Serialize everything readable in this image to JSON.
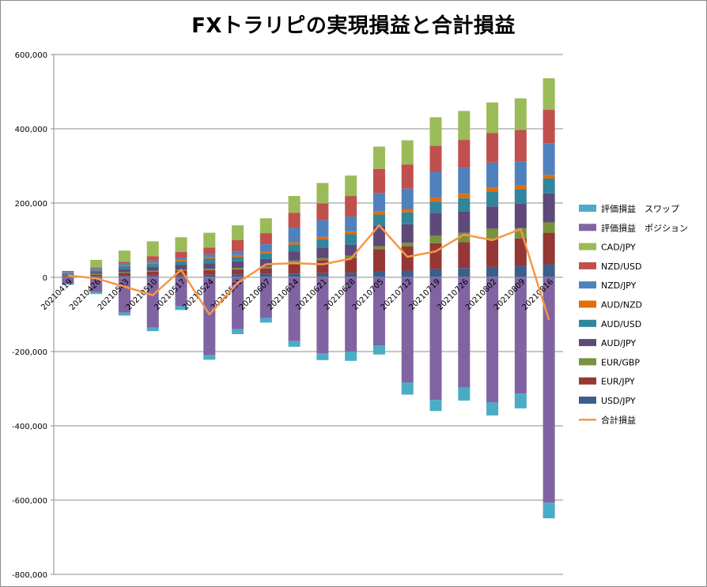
{
  "chart_data": {
    "type": "bar",
    "title": "FXトラリピの実現損益と合計損益",
    "categories": [
      "20210419",
      "20210426",
      "20210503",
      "20210510",
      "20210517",
      "20210524",
      "20210531",
      "20210607",
      "20210614",
      "20210621",
      "20210628",
      "20210705",
      "20210712",
      "20210719",
      "20210726",
      "20210802",
      "20210809",
      "20210816"
    ],
    "ylim": [
      -800000,
      600000
    ],
    "ytick_step": 200000,
    "ytick_labels": [
      "600,000",
      "400,000",
      "200,000",
      "0",
      "-200,000",
      "-400,000",
      "-600,000",
      "-800,000"
    ],
    "grid": true,
    "legend_position": "right",
    "series": [
      {
        "name": "USD/JPY",
        "color": "#3b5e8c",
        "values": [
          2000,
          3000,
          4000,
          5000,
          6000,
          7000,
          8000,
          9000,
          10000,
          11000,
          12000,
          16000,
          18000,
          22000,
          25000,
          28000,
          30000,
          35000
        ]
      },
      {
        "name": "EUR/JPY",
        "color": "#953735",
        "values": [
          2000,
          4000,
          8000,
          10000,
          12000,
          12000,
          13000,
          15000,
          30000,
          35000,
          40000,
          60000,
          65000,
          70000,
          70000,
          75000,
          75000,
          85000
        ]
      },
      {
        "name": "EUR/GBP",
        "color": "#77933c",
        "values": [
          1000,
          2000,
          2000,
          3000,
          3000,
          4000,
          4000,
          5000,
          5000,
          6000,
          6000,
          8000,
          10000,
          20000,
          25000,
          28000,
          28000,
          28000
        ]
      },
      {
        "name": "AUD/JPY",
        "color": "#5f497a",
        "values": [
          3000,
          5000,
          8000,
          10000,
          12000,
          15000,
          18000,
          20000,
          25000,
          28000,
          30000,
          55000,
          50000,
          62000,
          58000,
          60000,
          65000,
          78000
        ]
      },
      {
        "name": "AUD/USD",
        "color": "#31859c",
        "values": [
          3000,
          5000,
          8000,
          8000,
          10000,
          12000,
          12000,
          15000,
          18000,
          22000,
          28000,
          30000,
          32000,
          30000,
          35000,
          40000,
          40000,
          40000
        ]
      },
      {
        "name": "AUD/NZD",
        "color": "#e46c0a",
        "values": [
          1000,
          1000,
          2000,
          3000,
          4000,
          4000,
          5000,
          5000,
          6000,
          7000,
          8000,
          8000,
          9000,
          10000,
          12000,
          10000,
          10000,
          10000
        ]
      },
      {
        "name": "NZD/JPY",
        "color": "#4f81bd",
        "values": [
          3000,
          4000,
          5000,
          6000,
          6000,
          8000,
          10000,
          20000,
          40000,
          45000,
          40000,
          50000,
          55000,
          70000,
          70000,
          68000,
          64000,
          85000
        ]
      },
      {
        "name": "NZD/USD",
        "color": "#c0504d",
        "values": [
          2000,
          3000,
          5000,
          12000,
          15000,
          18000,
          30000,
          30000,
          40000,
          45000,
          55000,
          65000,
          65000,
          70000,
          75000,
          80000,
          85000,
          90000
        ]
      },
      {
        "name": "CAD/JPY",
        "color": "#9bbb59",
        "values": [
          0,
          20000,
          30000,
          40000,
          40000,
          40000,
          40000,
          40000,
          45000,
          55000,
          55000,
          60000,
          65000,
          77000,
          78000,
          82000,
          85000,
          85000
        ]
      },
      {
        "name": "評価損益　ポジション",
        "color": "#8064a2",
        "values": [
          -18000,
          -40000,
          -95000,
          -135000,
          -78000,
          -210000,
          -140000,
          -110000,
          -172000,
          -205000,
          -200000,
          -183000,
          -283000,
          -330000,
          -297000,
          -337000,
          -313000,
          -607000
        ]
      },
      {
        "name": "評価損益　スワップ",
        "color": "#4bacc6",
        "values": [
          -2000,
          -5000,
          -8000,
          -10000,
          -10000,
          -12000,
          -13000,
          -12000,
          -15000,
          -18000,
          -25000,
          -25000,
          -33000,
          -30000,
          -35000,
          -35000,
          -40000,
          -42000
        ]
      }
    ],
    "line_series": {
      "name": "合計損益",
      "color": "#f79646",
      "values": [
        5000,
        -3000,
        -25000,
        -48000,
        20000,
        -100000,
        -15000,
        35000,
        38000,
        35000,
        50000,
        140000,
        55000,
        70000,
        115000,
        100000,
        130000,
        -115000
      ]
    },
    "legend_order": [
      "評価損益　スワップ",
      "評価損益　ポジション",
      "CAD/JPY",
      "NZD/USD",
      "NZD/JPY",
      "AUD/NZD",
      "AUD/USD",
      "AUD/JPY",
      "EUR/GBP",
      "EUR/JPY",
      "USD/JPY",
      "合計損益"
    ]
  }
}
